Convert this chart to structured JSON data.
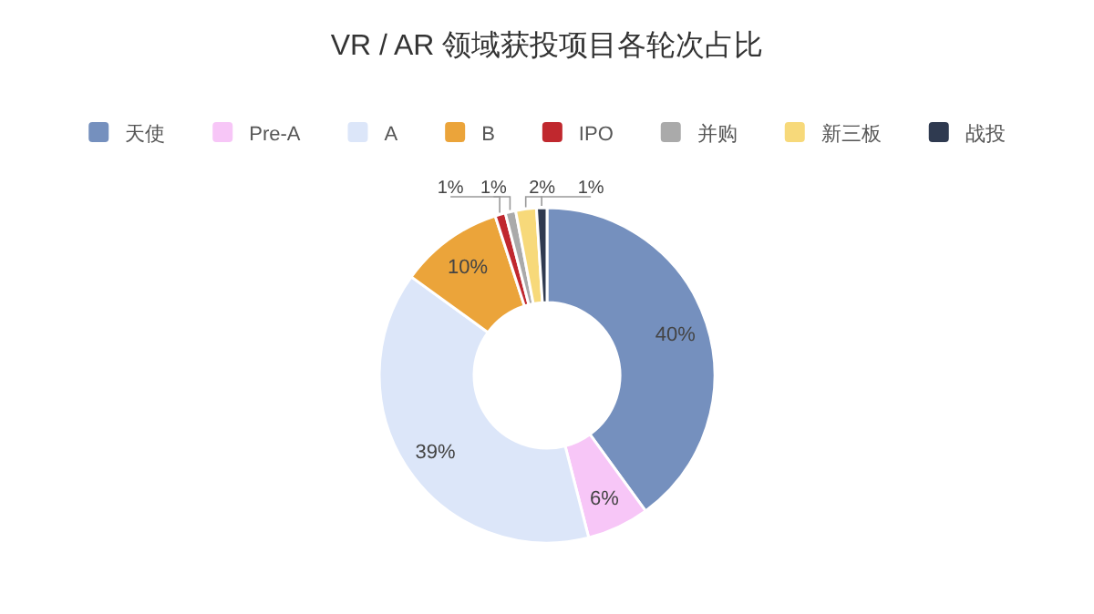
{
  "chart_data": {
    "type": "donut",
    "title": "VR / AR 领域获投项目各轮次占比",
    "categories": [
      "天使",
      "Pre-A",
      "A",
      "B",
      "IPO",
      "并购",
      "新三板",
      "战投"
    ],
    "values": [
      40,
      6,
      39,
      10,
      1,
      1,
      2,
      1
    ],
    "colors": [
      "#7590be",
      "#f7c6f7",
      "#dce6f9",
      "#eba43a",
      "#c0282e",
      "#aaaaaa",
      "#f7d97a",
      "#2f3a50"
    ],
    "value_labels": [
      "40%",
      "6%",
      "39%",
      "10%",
      "1%",
      "1%",
      "2%",
      "1%"
    ],
    "legend": "top"
  }
}
